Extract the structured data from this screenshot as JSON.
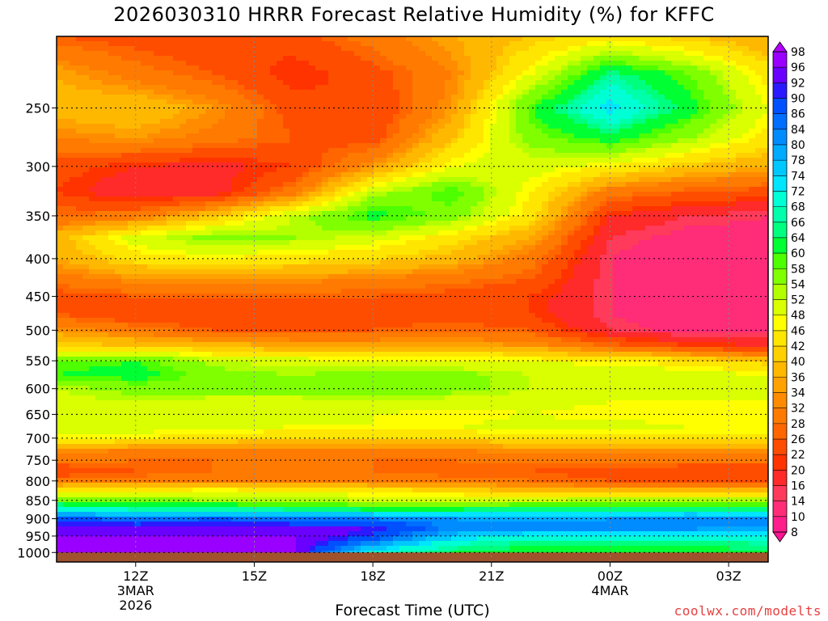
{
  "title": "2026030310 HRRR Forecast Relative Humidity (%) for KFFC",
  "xlabel": "Forecast Time (UTC)",
  "credit": "coolwx.com/modelts",
  "chart_data": {
    "type": "heatmap",
    "title": "2026030310 HRRR Forecast Relative Humidity (%) for KFFC",
    "xlabel": "Forecast Time (UTC)",
    "ylabel": "",
    "x_range_hours_utc": [
      10.0,
      28.0
    ],
    "x_ticks": [
      {
        "hour": 12,
        "label": "12Z",
        "sub1": "3MAR",
        "sub2": "2026"
      },
      {
        "hour": 15,
        "label": "15Z",
        "sub1": "",
        "sub2": ""
      },
      {
        "hour": 18,
        "label": "18Z",
        "sub1": "",
        "sub2": ""
      },
      {
        "hour": 21,
        "label": "21Z",
        "sub1": "",
        "sub2": ""
      },
      {
        "hour": 24,
        "label": "00Z",
        "sub1": "4MAR",
        "sub2": ""
      },
      {
        "hour": 27,
        "label": "03Z",
        "sub1": "",
        "sub2": ""
      }
    ],
    "y_range_hpa": [
      1030,
      200
    ],
    "y_scale": "log-pressure",
    "y_ticks": [
      250,
      300,
      350,
      400,
      450,
      500,
      550,
      600,
      650,
      700,
      750,
      800,
      850,
      900,
      950,
      1000
    ],
    "ground_pressure_hpa": 1000,
    "grid": true,
    "colorbar": {
      "levels": [
        8,
        10,
        14,
        16,
        20,
        22,
        26,
        28,
        32,
        34,
        36,
        40,
        42,
        46,
        48,
        52,
        54,
        58,
        60,
        64,
        66,
        68,
        72,
        74,
        78,
        80,
        84,
        86,
        90,
        92,
        96,
        98
      ],
      "colors": [
        "#ff1493",
        "#ff1e8c",
        "#ff2c78",
        "#ff3a5a",
        "#ff2a2a",
        "#ff3300",
        "#ff4d00",
        "#ff6600",
        "#ff7a00",
        "#ff8c00",
        "#ffa200",
        "#ffb800",
        "#ffd000",
        "#ffe600",
        "#ffff00",
        "#d9ff00",
        "#b3ff00",
        "#80ff00",
        "#4dff00",
        "#00ff33",
        "#00ff7f",
        "#00ffaa",
        "#00ffd5",
        "#00e5ff",
        "#00c8ff",
        "#00aaff",
        "#008cff",
        "#006eff",
        "#0050ff",
        "#2a1aff",
        "#6a00ff",
        "#9900ff",
        "#b400ff"
      ]
    },
    "pressure_levels_hpa": [
      200,
      225,
      250,
      275,
      300,
      325,
      350,
      375,
      400,
      425,
      450,
      475,
      500,
      525,
      550,
      575,
      600,
      625,
      650,
      675,
      700,
      725,
      750,
      775,
      800,
      825,
      850,
      875,
      900,
      925,
      950,
      975,
      1000
    ],
    "forecast_hours_utc": [
      10,
      12,
      14,
      16,
      18,
      20,
      22,
      24,
      26,
      28
    ],
    "rh_values": [
      [
        26,
        24,
        22,
        24,
        30,
        36,
        40,
        44,
        40,
        36
      ],
      [
        36,
        30,
        26,
        20,
        24,
        32,
        48,
        66,
        58,
        44
      ],
      [
        38,
        40,
        34,
        24,
        22,
        34,
        60,
        74,
        62,
        48
      ],
      [
        32,
        34,
        30,
        26,
        24,
        40,
        56,
        62,
        54,
        44
      ],
      [
        24,
        20,
        18,
        22,
        34,
        48,
        50,
        46,
        40,
        36
      ],
      [
        22,
        16,
        18,
        30,
        52,
        60,
        46,
        30,
        26,
        24
      ],
      [
        28,
        30,
        40,
        52,
        62,
        56,
        44,
        20,
        16,
        14
      ],
      [
        38,
        50,
        56,
        54,
        50,
        44,
        36,
        16,
        12,
        12
      ],
      [
        36,
        44,
        46,
        44,
        42,
        38,
        30,
        14,
        10,
        10
      ],
      [
        30,
        34,
        34,
        34,
        32,
        30,
        26,
        14,
        10,
        10
      ],
      [
        24,
        26,
        26,
        26,
        26,
        24,
        22,
        14,
        10,
        10
      ],
      [
        26,
        22,
        22,
        24,
        24,
        24,
        22,
        14,
        10,
        10
      ],
      [
        34,
        30,
        26,
        26,
        26,
        28,
        26,
        16,
        12,
        12
      ],
      [
        42,
        40,
        38,
        36,
        36,
        36,
        34,
        28,
        22,
        20
      ],
      [
        58,
        60,
        52,
        50,
        48,
        48,
        48,
        46,
        44,
        40
      ],
      [
        60,
        62,
        56,
        54,
        56,
        56,
        52,
        52,
        50,
        48
      ],
      [
        52,
        56,
        56,
        56,
        58,
        56,
        52,
        50,
        52,
        50
      ],
      [
        50,
        52,
        50,
        50,
        52,
        50,
        50,
        48,
        48,
        48
      ],
      [
        50,
        50,
        48,
        48,
        48,
        46,
        48,
        46,
        46,
        46
      ],
      [
        52,
        50,
        50,
        48,
        48,
        48,
        50,
        50,
        48,
        48
      ],
      [
        46,
        46,
        44,
        42,
        42,
        42,
        44,
        44,
        44,
        44
      ],
      [
        34,
        32,
        32,
        32,
        32,
        32,
        34,
        34,
        34,
        34
      ],
      [
        30,
        28,
        28,
        28,
        28,
        28,
        30,
        30,
        30,
        30
      ],
      [
        22,
        26,
        28,
        28,
        28,
        26,
        26,
        24,
        22,
        22
      ],
      [
        30,
        30,
        30,
        30,
        30,
        30,
        28,
        26,
        26,
        26
      ],
      [
        44,
        46,
        48,
        46,
        44,
        42,
        40,
        38,
        40,
        40
      ],
      [
        58,
        56,
        54,
        54,
        52,
        52,
        52,
        54,
        54,
        54
      ],
      [
        72,
        68,
        68,
        66,
        64,
        64,
        66,
        66,
        66,
        66
      ],
      [
        88,
        84,
        86,
        84,
        84,
        80,
        78,
        80,
        82,
        80
      ],
      [
        94,
        94,
        94,
        94,
        92,
        84,
        82,
        82,
        82,
        80
      ],
      [
        96,
        96,
        96,
        96,
        90,
        76,
        70,
        70,
        70,
        70
      ],
      [
        96,
        96,
        96,
        96,
        80,
        68,
        64,
        64,
        64,
        66
      ],
      [
        96,
        96,
        96,
        96,
        70,
        64,
        62,
        62,
        62,
        64
      ]
    ]
  }
}
